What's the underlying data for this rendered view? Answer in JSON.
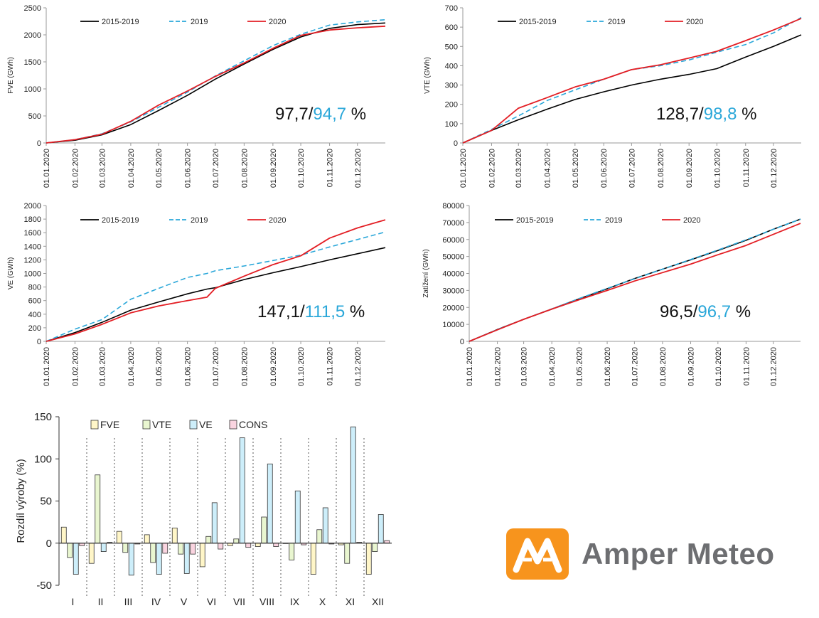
{
  "colors": {
    "avg": "#000000",
    "y2019": "#2aa7d9",
    "y2020": "#e31e24",
    "pct_highlight": "#2aa7d9",
    "bar_fve": "#fff6c8",
    "bar_vte": "#e9f6d0",
    "bar_ve": "#cdeefa",
    "bar_cons": "#fad4e0"
  },
  "legend_line": [
    "2015-2019",
    "2019",
    "2020"
  ],
  "date_ticks": [
    "01.01.2020",
    "01.02.2020",
    "01.03.2020",
    "01.04.2020",
    "01.05.2020",
    "01.06.2020",
    "01.07.2020",
    "01.08.2020",
    "01.09.2020",
    "01.10.2020",
    "01.11.2020",
    "01.12.2020"
  ],
  "logo": {
    "text": "Amper Meteo",
    "icon": "amper-meteo-logo-icon"
  },
  "chart_data": [
    {
      "type": "line",
      "id": "fve",
      "ylabel": "FVE  (GWh)",
      "ylim": [
        0,
        2500
      ],
      "yticks": [
        0,
        500,
        1000,
        1500,
        2000,
        2500
      ],
      "pct_first": "97,7/",
      "pct_second": "94,7",
      "pct_unit": " %",
      "x": [
        0,
        31,
        60,
        91,
        121,
        152,
        182,
        213,
        244,
        274,
        305,
        335,
        365
      ],
      "series": [
        {
          "name": "2015-2019",
          "values": [
            0,
            50,
            150,
            340,
            600,
            880,
            1180,
            1460,
            1730,
            1960,
            2120,
            2190,
            2220
          ]
        },
        {
          "name": "2019",
          "values": [
            0,
            60,
            170,
            390,
            660,
            940,
            1240,
            1520,
            1800,
            2010,
            2180,
            2240,
            2280
          ]
        },
        {
          "name": "2020",
          "values": [
            0,
            60,
            160,
            400,
            700,
            960,
            1230,
            1480,
            1750,
            1990,
            2090,
            2130,
            2160
          ]
        }
      ]
    },
    {
      "type": "line",
      "id": "vte",
      "ylabel": "VTE  (GWh)",
      "ylim": [
        0,
        700
      ],
      "yticks": [
        0,
        100,
        200,
        300,
        400,
        500,
        600,
        700
      ],
      "pct_first": "128,7/",
      "pct_second": "98,8",
      "pct_unit": " %",
      "x": [
        0,
        31,
        60,
        91,
        121,
        152,
        182,
        213,
        244,
        274,
        305,
        335,
        365
      ],
      "series": [
        {
          "name": "2015-2019",
          "values": [
            0,
            65,
            120,
            175,
            225,
            265,
            300,
            330,
            355,
            385,
            445,
            500,
            560
          ]
        },
        {
          "name": "2019",
          "values": [
            0,
            70,
            140,
            220,
            275,
            330,
            380,
            400,
            430,
            470,
            510,
            570,
            650
          ]
        },
        {
          "name": "2020",
          "values": [
            0,
            65,
            180,
            235,
            290,
            330,
            380,
            405,
            440,
            475,
            530,
            585,
            645
          ]
        }
      ]
    },
    {
      "type": "line",
      "id": "ve",
      "ylabel": "VE  (GWh)",
      "ylim": [
        0,
        2000
      ],
      "yticks": [
        0,
        200,
        400,
        600,
        800,
        1000,
        1200,
        1400,
        1600,
        1800,
        2000
      ],
      "pct_first": "147,1/",
      "pct_second": "111,5",
      "pct_unit": " %",
      "x": [
        0,
        31,
        60,
        91,
        121,
        152,
        173,
        182,
        213,
        244,
        274,
        305,
        335,
        365
      ],
      "series": [
        {
          "name": "2015-2019",
          "values": [
            0,
            130,
            280,
            460,
            580,
            700,
            770,
            790,
            910,
            1010,
            1100,
            1200,
            1290,
            1380
          ]
        },
        {
          "name": "2019",
          "values": [
            0,
            180,
            320,
            620,
            780,
            940,
            1000,
            1040,
            1110,
            1190,
            1270,
            1390,
            1500,
            1610
          ]
        },
        {
          "name": "2020",
          "values": [
            0,
            110,
            250,
            420,
            520,
            600,
            650,
            780,
            960,
            1130,
            1260,
            1520,
            1670,
            1790
          ]
        }
      ]
    },
    {
      "type": "line",
      "id": "load",
      "ylabel": "Zatížení  (GWh)",
      "ylim": [
        0,
        80000
      ],
      "yticks": [
        0,
        10000,
        20000,
        30000,
        40000,
        50000,
        60000,
        70000,
        80000
      ],
      "pct_first": "96,5/",
      "pct_second": "96,7",
      "pct_unit": " %",
      "x": [
        0,
        31,
        60,
        91,
        121,
        152,
        182,
        213,
        244,
        274,
        305,
        335,
        365
      ],
      "series": [
        {
          "name": "2015-2019",
          "values": [
            0,
            7000,
            13000,
            19000,
            25000,
            31000,
            37000,
            42500,
            48000,
            53500,
            59500,
            66000,
            72000
          ]
        },
        {
          "name": "2019",
          "values": [
            0,
            7000,
            13000,
            19200,
            25200,
            31200,
            36800,
            42500,
            48200,
            53800,
            59800,
            66000,
            72000
          ]
        },
        {
          "name": "2020",
          "values": [
            0,
            6800,
            13000,
            19000,
            24500,
            30000,
            35500,
            40500,
            45500,
            51000,
            56500,
            63000,
            69500
          ]
        }
      ]
    },
    {
      "type": "bar",
      "id": "diff",
      "ylabel": "Rozdíl výroby (%)",
      "ylim": [
        -50,
        150
      ],
      "yticks": [
        -50,
        0,
        50,
        100,
        150
      ],
      "categories": [
        "I",
        "II",
        "III",
        "IV",
        "V",
        "VI",
        "VII",
        "VIII",
        "IX",
        "X",
        "XI",
        "XII"
      ],
      "series": [
        {
          "name": "FVE",
          "values": [
            19,
            -24,
            14,
            10,
            18,
            -28,
            -3,
            -4,
            0,
            -37,
            -2,
            -37
          ]
        },
        {
          "name": "VTE",
          "values": [
            -17,
            81,
            -11,
            -23,
            -13,
            8,
            5,
            31,
            -20,
            16,
            -24,
            -10
          ]
        },
        {
          "name": "VE",
          "values": [
            -37,
            -10,
            -38,
            -37,
            -36,
            48,
            125,
            94,
            62,
            42,
            138,
            34
          ]
        },
        {
          "name": "CONS",
          "values": [
            -3,
            1,
            -1,
            -12,
            -13,
            -7,
            -5,
            -4,
            -2,
            -1,
            1,
            3
          ]
        }
      ]
    }
  ]
}
